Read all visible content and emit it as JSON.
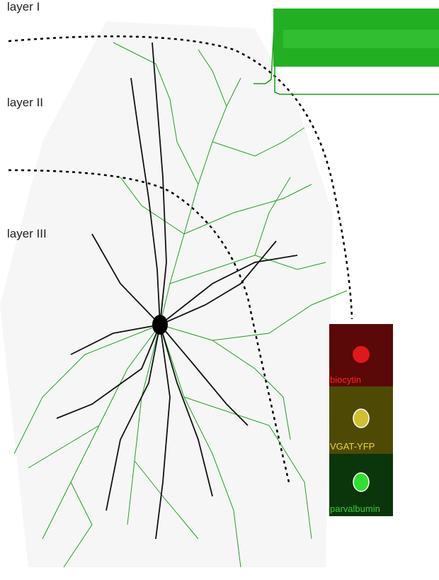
{
  "labels": {
    "layer_1": "layer I",
    "layer_2": "layer II",
    "layer_3": "layer III"
  },
  "insets": [
    {
      "label": "biocytin"
    },
    {
      "label": "VGAT-YFP"
    },
    {
      "label": "parvalbumin"
    }
  ]
}
